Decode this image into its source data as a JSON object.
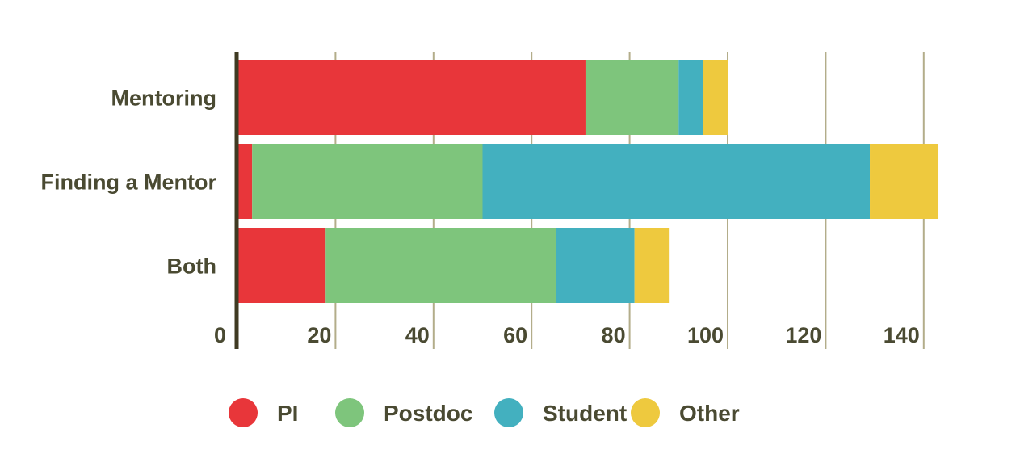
{
  "chart_data": {
    "type": "bar",
    "orientation": "horizontal",
    "stacked": true,
    "categories": [
      "Mentoring",
      "Finding a Mentor",
      "Both"
    ],
    "series": [
      {
        "name": "PI",
        "color": "#e8363a",
        "values": [
          71,
          3,
          18
        ]
      },
      {
        "name": "Postdoc",
        "color": "#7ec57c",
        "values": [
          19,
          47,
          47
        ]
      },
      {
        "name": "Student",
        "color": "#43b0bf",
        "values": [
          5,
          79,
          16
        ]
      },
      {
        "name": "Other",
        "color": "#eec93e",
        "values": [
          5,
          14,
          7
        ]
      }
    ],
    "xlim": [
      0,
      145
    ],
    "xticks": [
      "0",
      "20",
      "40",
      "60",
      "80",
      "100",
      "120",
      "140"
    ],
    "grid": true,
    "legend_position": "bottom"
  }
}
